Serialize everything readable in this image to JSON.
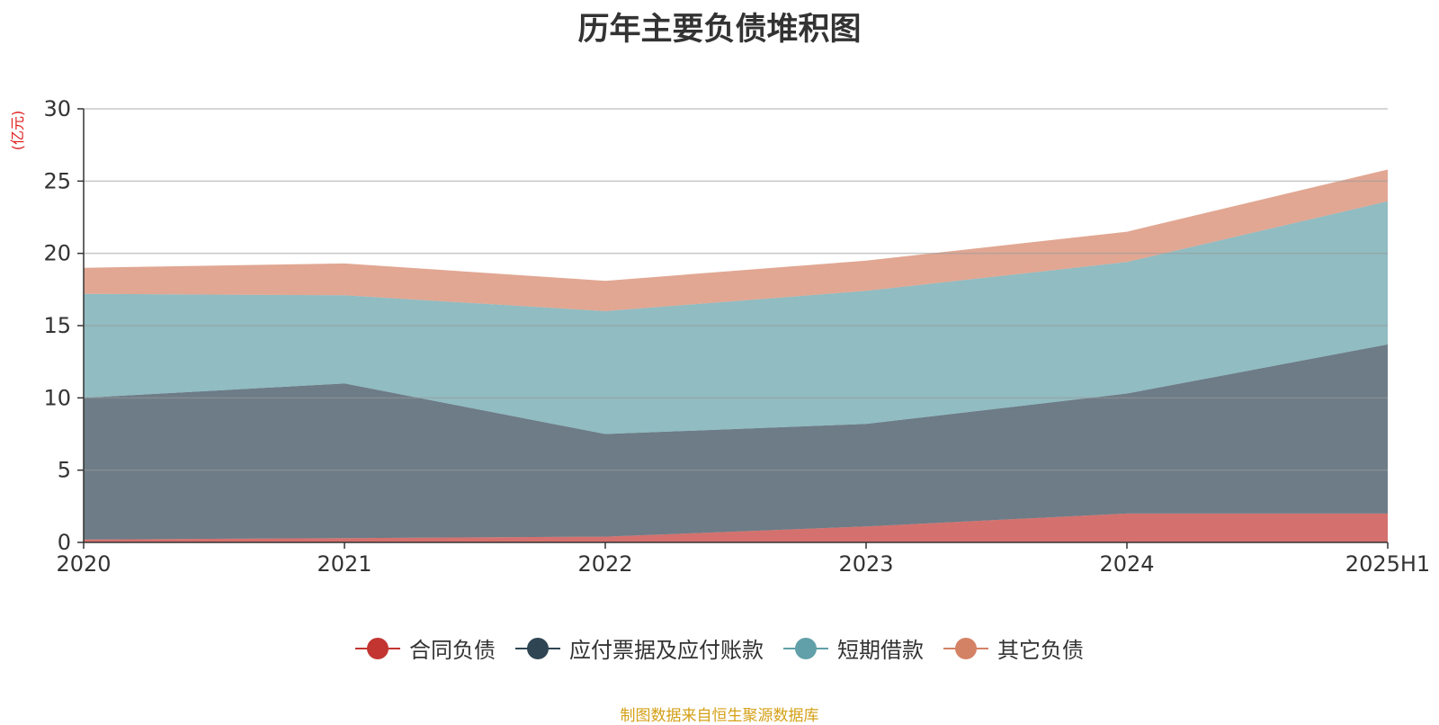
{
  "chart_data": {
    "type": "area",
    "stacked": true,
    "title": "历年主要负债堆积图",
    "ylabel": "(亿元)",
    "categories": [
      "2020",
      "2021",
      "2022",
      "2023",
      "2024",
      "2025H1"
    ],
    "ylim": [
      0,
      30
    ],
    "yticks": [
      0,
      5,
      10,
      15,
      20,
      25,
      30
    ],
    "grid": true,
    "legend_position": "bottom",
    "series": [
      {
        "name": "合同负债",
        "color": "#c23531",
        "values": [
          0.2,
          0.3,
          0.4,
          1.1,
          2.0,
          2.0
        ]
      },
      {
        "name": "应付票据及应付账款",
        "color": "#2f4554",
        "values": [
          9.8,
          10.7,
          7.1,
          7.1,
          8.3,
          11.7
        ]
      },
      {
        "name": "短期借款",
        "color": "#61a0a8",
        "values": [
          7.2,
          6.1,
          8.5,
          9.2,
          9.1,
          9.9
        ]
      },
      {
        "name": "其它负债",
        "color": "#d48265",
        "values": [
          1.8,
          2.2,
          2.1,
          2.1,
          2.1,
          2.2
        ]
      }
    ]
  },
  "source_note": "制图数据来自恒生聚源数据库"
}
